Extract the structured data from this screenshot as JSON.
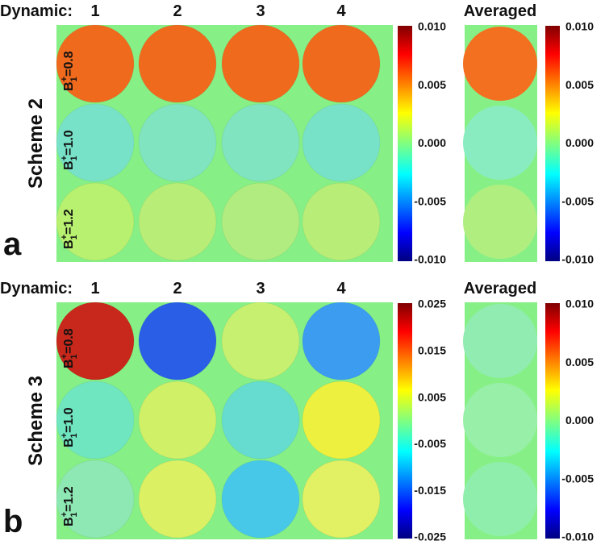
{
  "panels": [
    {
      "letter": "a",
      "scheme": "Scheme 2",
      "header": {
        "label": "Dynamic:",
        "columns": [
          "1",
          "2",
          "3",
          "4"
        ],
        "averaged": "Averaged"
      },
      "rows": [
        {
          "symbol": "B",
          "subscript": "1",
          "superscript": "+",
          "value": "=0.8"
        },
        {
          "symbol": "B",
          "subscript": "1",
          "superscript": "+",
          "value": "=1.0"
        },
        {
          "symbol": "B",
          "subscript": "1",
          "superscript": "+",
          "value": "=1.2"
        }
      ],
      "colorbar_ticks": [
        "0.010",
        "0.005",
        "0.000",
        "-0.005",
        "-0.010"
      ],
      "averaged_colorbar_ticks": [
        "0.010",
        "0.005",
        "0.000",
        "-0.005",
        "-0.010"
      ]
    },
    {
      "letter": "b",
      "scheme": "Scheme 3",
      "header": {
        "label": "Dynamic:",
        "columns": [
          "1",
          "2",
          "3",
          "4"
        ],
        "averaged": "Averaged"
      },
      "rows": [
        {
          "symbol": "B",
          "subscript": "1",
          "superscript": "+",
          "value": "=0.8"
        },
        {
          "symbol": "B",
          "subscript": "1",
          "superscript": "+",
          "value": "=1.0"
        },
        {
          "symbol": "B",
          "subscript": "1",
          "superscript": "+",
          "value": "=1.2"
        }
      ],
      "colorbar_ticks": [
        "0.025",
        "0.015",
        "0.005",
        "-0.005",
        "-0.015",
        "-0.025"
      ],
      "averaged_colorbar_ticks": [
        "0.010",
        "0.005",
        "0.000",
        "-0.005",
        "-0.010"
      ]
    }
  ]
}
